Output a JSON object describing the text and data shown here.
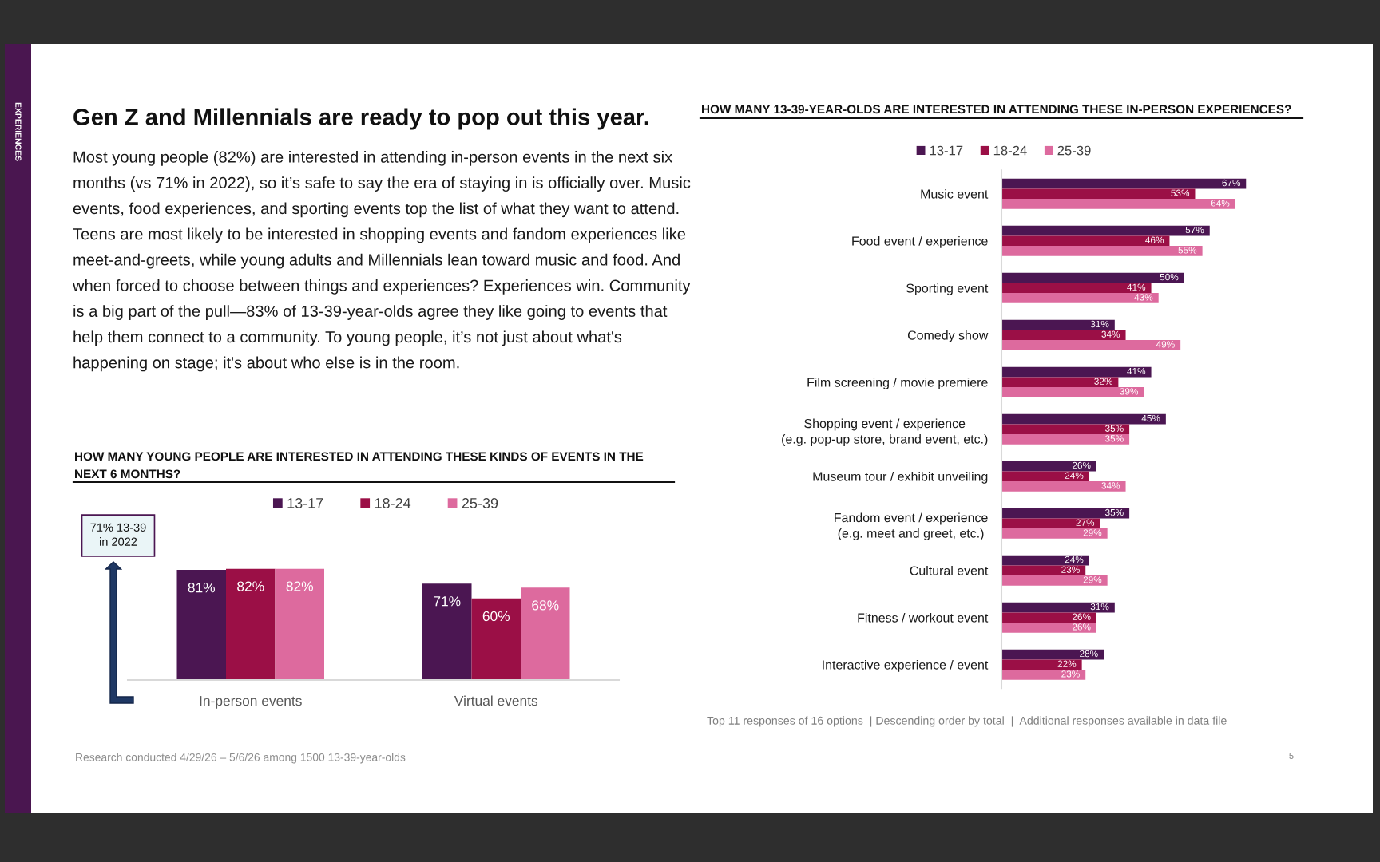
{
  "chart_data": [
    {
      "type": "other",
      "title": "Gen Z and Millennials are ready to pop out this year.",
      "annotations": [
        "Most young people (82%) are interested in attending in-person events in the next six months (vs 71% in 2022), so it’s safe to say the era of staying in is officially over. Music events, food experiences, and sporting events top the list of what they want to attend. Teens are most likely to be interested in shopping events and fandom experiences like meet-and-greets, while young adults and Millennials lean toward music and food. And when forced to choose between things and experiences? Experiences win. Community is a big part of the pull—83% of 13-39-year-olds agree they like going to events that help them connect to a community. To young people, it’s not just about what's happening on stage; it's about who else is in the room.",
        "EXPERIENCES",
        "5"
      ]
    },
    {
      "type": "bar",
      "title": "HOW MANY YOUNG PEOPLE ARE INTERESTED IN ATTENDING THESE KINDS OF EVENTS IN THE NEXT 6 MONTHS?",
      "categories": [
        "In-person events",
        "Virtual events"
      ],
      "series": [
        {
          "name": "13-17",
          "color": "#4b1652",
          "values": [
            81,
            71
          ],
          "value_labels": [
            "81%",
            "71%"
          ]
        },
        {
          "name": "18-24",
          "color": "#9b0f46",
          "values": [
            82,
            60
          ],
          "value_labels": [
            "82%",
            "60%"
          ]
        },
        {
          "name": "25-39",
          "color": "#dd6a9e",
          "values": [
            82,
            68
          ],
          "value_labels": [
            "82%",
            "68%"
          ]
        }
      ],
      "legend": "top",
      "tick_labels": "x",
      "annotations": [
        "71% 13-39\nin 2022",
        "Research conducted 4/29/26 – 5/6/26 among 1500 13-39-year-olds"
      ]
    },
    {
      "type": "bar",
      "orientation": "horizontal",
      "title": "HOW MANY 13-39-YEAR-OLDS ARE INTERESTED IN ATTENDING THESE IN-PERSON EXPERIENCES?",
      "categories": [
        "Music event",
        "Food event / experience",
        "Sporting event",
        "Comedy show",
        "Film screening / movie premiere",
        "Shopping event / experience\n(e.g. pop-up store, brand event, etc.)",
        "Museum tour / exhibit unveiling",
        "Fandom event / experience\n(e.g. meet and greet, etc.)",
        "Cultural event",
        "Fitness / workout event",
        "Interactive experience / event"
      ],
      "series": [
        {
          "name": "13-17",
          "color": "#4b1652",
          "values": [
            67,
            57,
            50,
            31,
            41,
            45,
            26,
            35,
            24,
            31,
            28
          ],
          "value_labels": [
            "67%",
            "57%",
            "50%",
            "31%",
            "41%",
            "45%",
            "26%",
            "35%",
            "24%",
            "31%",
            "28%"
          ]
        },
        {
          "name": "18-24",
          "color": "#9b0f46",
          "values": [
            53,
            46,
            41,
            34,
            32,
            35,
            24,
            27,
            23,
            26,
            22
          ],
          "value_labels": [
            "53%",
            "46%",
            "41%",
            "34%",
            "32%",
            "35%",
            "24%",
            "27%",
            "23%",
            "26%",
            "22%"
          ]
        },
        {
          "name": "25-39",
          "color": "#dd6a9e",
          "values": [
            64,
            55,
            43,
            49,
            39,
            35,
            34,
            29,
            29,
            26,
            23
          ],
          "value_labels": [
            "64%",
            "55%",
            "43%",
            "49%",
            "39%",
            "35%",
            "34%",
            "29%",
            "29%",
            "26%",
            "23%"
          ]
        }
      ],
      "legend": "top",
      "tick_labels": "y",
      "annotations": [
        "Top 11 responses of 16 options  | Descending order by total  |  Additional responses available in data file"
      ]
    }
  ]
}
